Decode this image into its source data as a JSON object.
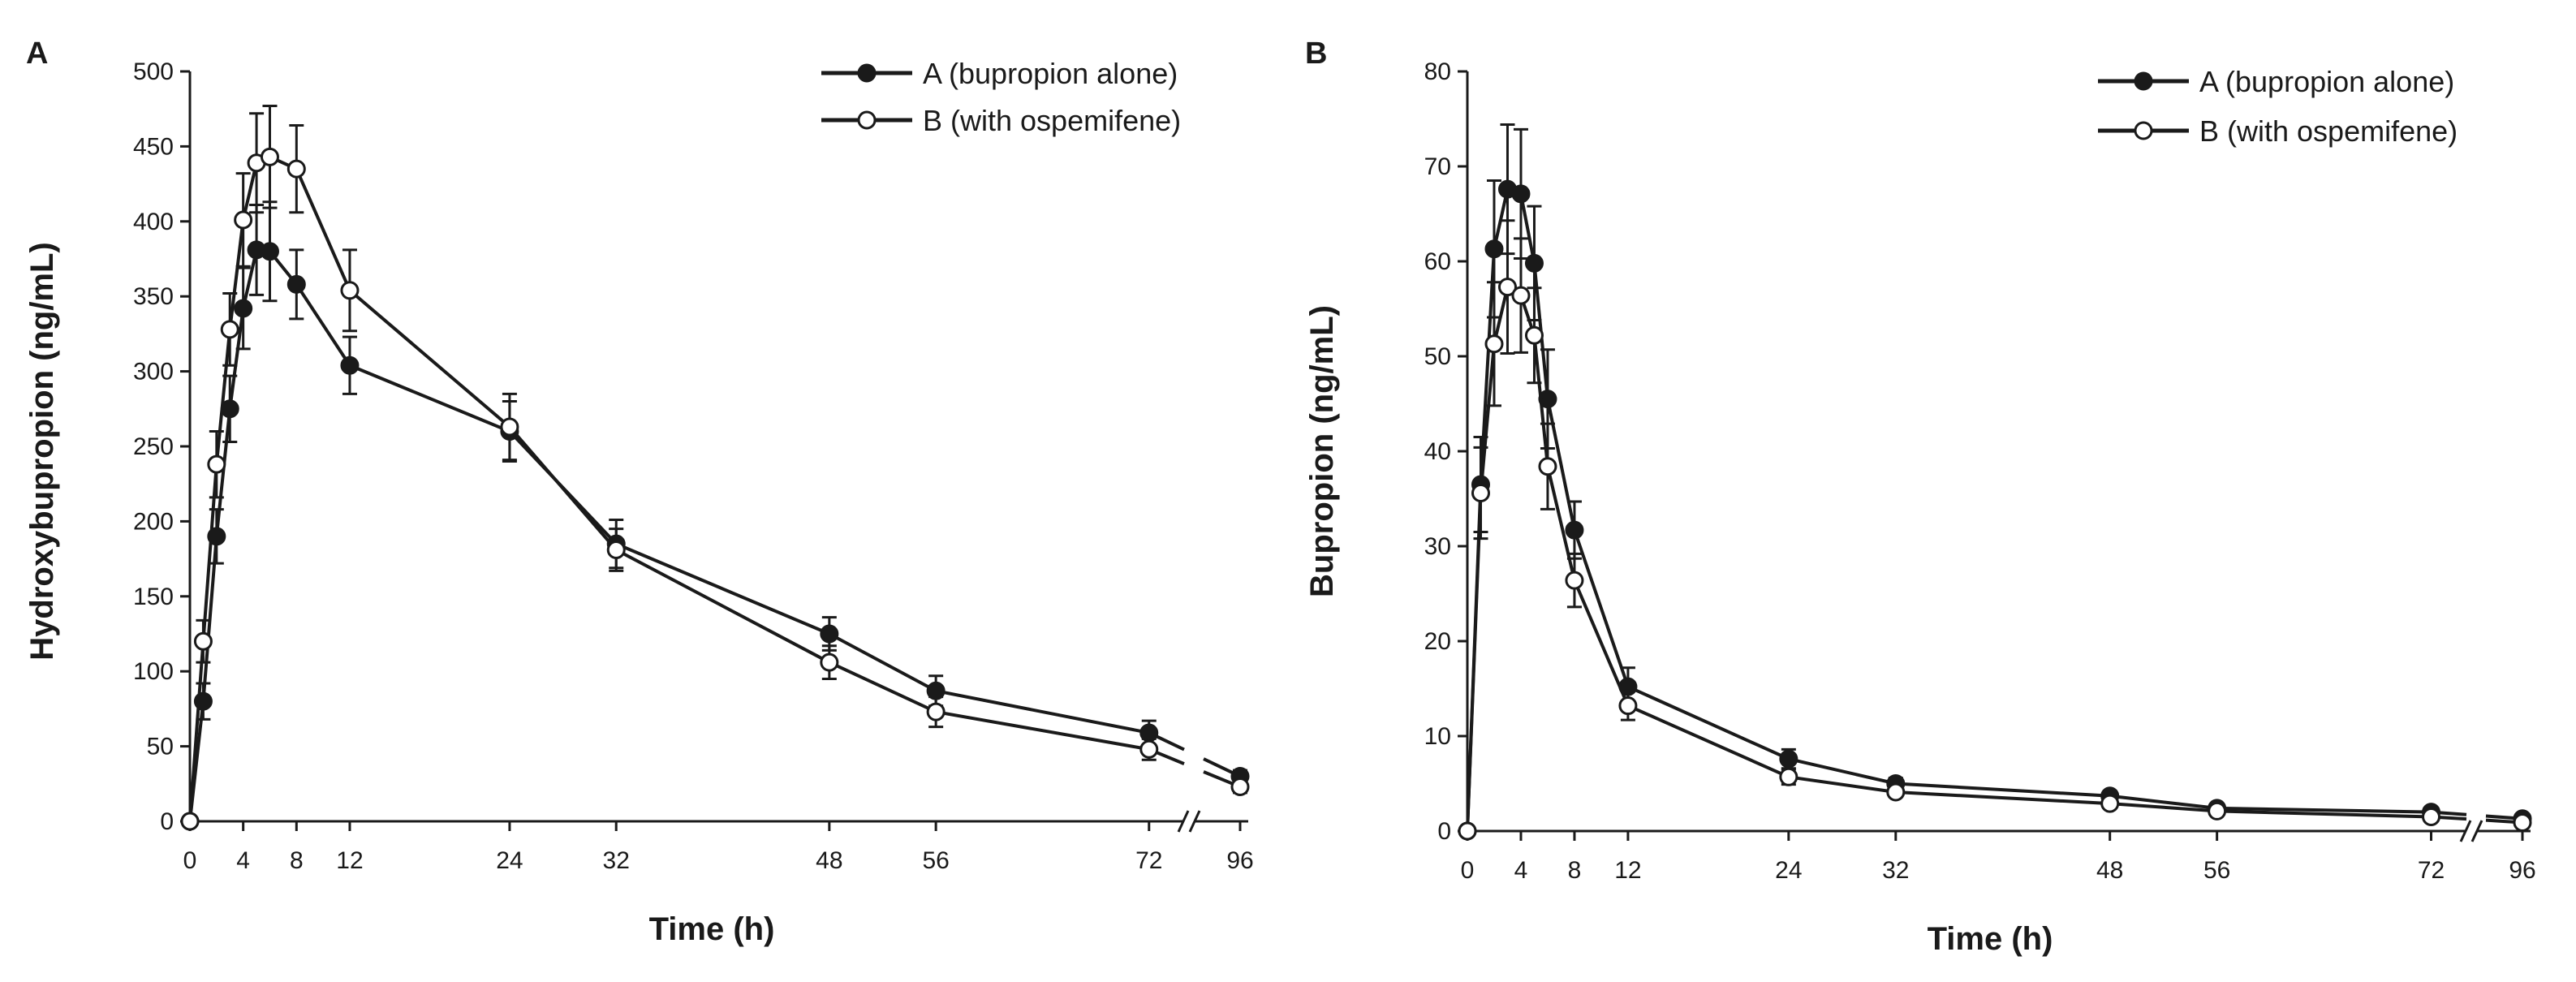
{
  "chart_data": [
    {
      "panel": "A",
      "type": "line",
      "xlabel": "Time (h)",
      "ylabel": "Hydroxybupropion (ng/mL)",
      "xlim": [
        0,
        96
      ],
      "ylim": [
        0,
        500
      ],
      "axis_break": "between 72 and 96 on x-axis",
      "xticks": [
        0,
        4,
        8,
        12,
        24,
        32,
        48,
        56,
        72,
        96
      ],
      "yticks": [
        0,
        50,
        100,
        150,
        200,
        250,
        300,
        350,
        400,
        450,
        500
      ],
      "legend_position": "top-right",
      "series": [
        {
          "name": "A (bupropion alone)",
          "marker": "filled-circle",
          "x": [
            0,
            1,
            2,
            3,
            4,
            5,
            6,
            8,
            12,
            24,
            32,
            48,
            56,
            72,
            96
          ],
          "y": [
            0,
            80,
            190,
            275,
            342,
            381,
            380,
            358,
            304,
            260,
            185,
            125,
            87,
            59,
            30
          ],
          "err": [
            0,
            12,
            18,
            22,
            27,
            30,
            33,
            23,
            19,
            20,
            16,
            11,
            10,
            8,
            4
          ]
        },
        {
          "name": "B (with ospemifene)",
          "marker": "open-circle",
          "x": [
            0,
            1,
            2,
            3,
            4,
            5,
            6,
            8,
            12,
            24,
            32,
            48,
            56,
            72,
            96
          ],
          "y": [
            0,
            120,
            238,
            328,
            401,
            439,
            443,
            435,
            354,
            263,
            181,
            106,
            73,
            48,
            23
          ],
          "err": [
            0,
            14,
            22,
            24,
            31,
            33,
            34,
            29,
            27,
            22,
            14,
            11,
            10,
            7,
            4
          ]
        }
      ]
    },
    {
      "panel": "B",
      "type": "line",
      "xlabel": "Time (h)",
      "ylabel": "Bupropion (ng/mL)",
      "xlim": [
        0,
        96
      ],
      "ylim": [
        0,
        80
      ],
      "axis_break": "between 72 and 96 on x-axis",
      "xticks": [
        0,
        4,
        8,
        12,
        24,
        32,
        48,
        56,
        72,
        96
      ],
      "yticks": [
        0,
        10,
        20,
        30,
        40,
        50,
        60,
        70,
        80
      ],
      "legend_position": "top-right",
      "series": [
        {
          "name": "A (bupropion alone)",
          "marker": "filled-circle",
          "x": [
            0,
            1,
            2,
            3,
            4,
            5,
            6,
            8,
            12,
            24,
            32,
            48,
            56,
            72,
            96
          ],
          "y": [
            0,
            36.5,
            61.3,
            67.6,
            67.1,
            59.8,
            45.5,
            31.7,
            15.2,
            7.6,
            5.0,
            3.7,
            2.4,
            2.0,
            1.3
          ],
          "err": [
            0,
            5.0,
            7.2,
            6.8,
            6.8,
            6.0,
            5.2,
            3.0,
            2.0,
            1.0,
            0.6,
            0.5,
            0.4,
            0.4,
            0.3
          ]
        },
        {
          "name": "B (with ospemifene)",
          "marker": "open-circle",
          "x": [
            0,
            1,
            2,
            3,
            4,
            5,
            6,
            8,
            12,
            24,
            32,
            48,
            56,
            72,
            96
          ],
          "y": [
            0,
            35.6,
            51.3,
            57.3,
            56.4,
            52.2,
            38.4,
            26.4,
            13.2,
            5.7,
            4.1,
            2.9,
            2.1,
            1.5,
            0.9
          ],
          "err": [
            0,
            4.8,
            6.5,
            7.0,
            6.0,
            5.0,
            4.5,
            2.8,
            1.5,
            0.8,
            0.5,
            0.4,
            0.3,
            0.3,
            0.2
          ]
        }
      ]
    }
  ]
}
